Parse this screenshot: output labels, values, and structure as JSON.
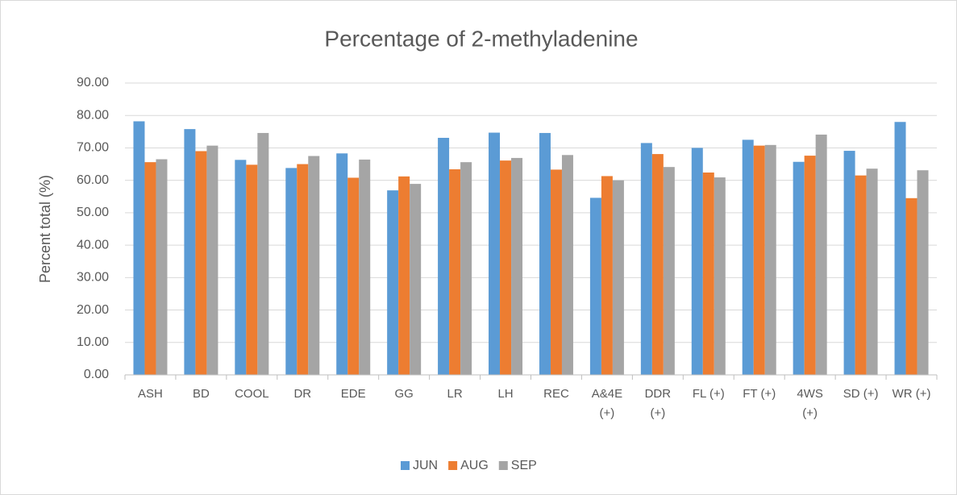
{
  "chart_data": {
    "type": "bar",
    "title": "Percentage of 2-methyladenine",
    "y_label": "Percent total (%)",
    "categories": [
      "ASH",
      "BD",
      "COOL",
      "DR",
      "EDE",
      "GG",
      "LR",
      "LH",
      "REC",
      "A&4E (+)",
      "DDR (+)",
      "FL (+)",
      "FT (+)",
      "4WS (+)",
      "SD (+)",
      "WR (+)"
    ],
    "series": [
      {
        "name": "JUN",
        "color": "#5b9bd5",
        "values": [
          78.2,
          75.8,
          66.3,
          63.8,
          68.3,
          56.9,
          73.1,
          74.7,
          74.6,
          54.6,
          71.5,
          70.0,
          72.5,
          65.7,
          69.1,
          78.0
        ]
      },
      {
        "name": "AUG",
        "color": "#ed7d31",
        "values": [
          65.6,
          69.0,
          64.8,
          65.0,
          60.8,
          61.2,
          63.4,
          66.1,
          63.3,
          61.3,
          68.1,
          62.4,
          70.7,
          67.6,
          61.5,
          54.5
        ]
      },
      {
        "name": "SEP",
        "color": "#a5a5a5",
        "values": [
          66.5,
          70.7,
          74.6,
          67.5,
          66.4,
          58.9,
          65.6,
          66.9,
          67.8,
          60.0,
          64.1,
          60.9,
          70.9,
          74.1,
          63.6,
          63.1
        ]
      }
    ],
    "ylim": [
      0,
      90
    ],
    "yticks": [
      {
        "value": 0,
        "label": "0.00"
      },
      {
        "value": 10,
        "label": "10.00"
      },
      {
        "value": 20,
        "label": "20.00"
      },
      {
        "value": 30,
        "label": "30.00"
      },
      {
        "value": 40,
        "label": "40.00"
      },
      {
        "value": 50,
        "label": "50.00"
      },
      {
        "value": 60,
        "label": "60.00"
      },
      {
        "value": 70,
        "label": "70.00"
      },
      {
        "value": 80,
        "label": "80.00"
      },
      {
        "value": 90,
        "label": "90.00"
      }
    ],
    "grid": true,
    "legend": "bottom"
  }
}
